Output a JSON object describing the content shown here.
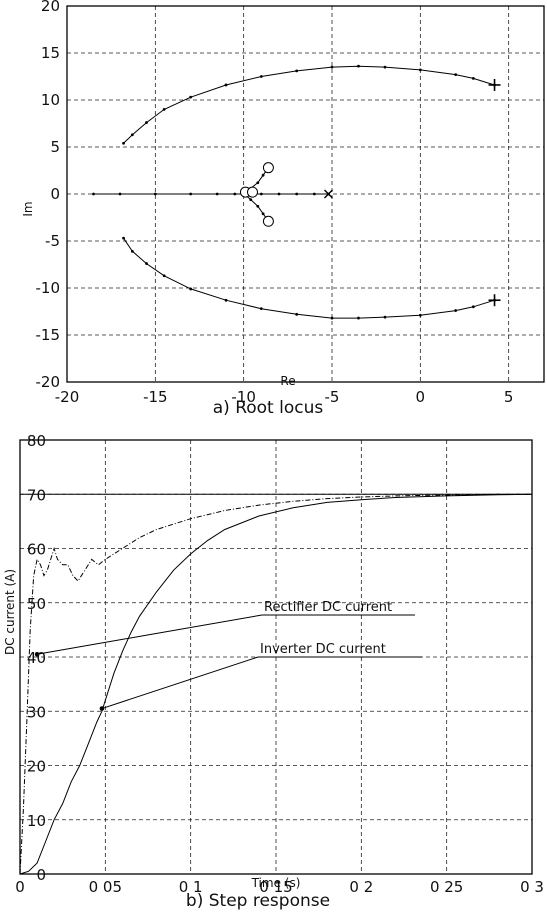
{
  "chart_data": [
    {
      "type": "scatter",
      "caption": "a) Root locus",
      "xlabel": "Re",
      "ylabel": "Im",
      "xlim": [
        -20,
        7
      ],
      "ylim": [
        -20,
        20
      ],
      "xticks": [
        -20,
        -15,
        -10,
        -5,
        0,
        5
      ],
      "yticks": [
        20,
        15,
        10,
        5,
        0,
        -5,
        -10,
        -15,
        -20
      ],
      "grid": true,
      "series": [
        {
          "points": [
            [
              4.2,
              11.6
            ],
            [
              3.0,
              12.3
            ],
            [
              2.0,
              12.7
            ],
            [
              0.0,
              13.2
            ],
            [
              -2.0,
              13.5
            ],
            [
              -3.5,
              13.6
            ],
            [
              -5.0,
              13.5
            ],
            [
              -7.0,
              13.1
            ],
            [
              -9.0,
              12.5
            ],
            [
              -11.0,
              11.6
            ],
            [
              -13.0,
              10.3
            ],
            [
              -14.5,
              9.0
            ],
            [
              -15.5,
              7.6
            ],
            [
              -16.3,
              6.3
            ],
            [
              -16.8,
              5.4
            ]
          ]
        },
        {
          "points": [
            [
              4.2,
              -11.3
            ],
            [
              3.0,
              -12.0
            ],
            [
              2.0,
              -12.4
            ],
            [
              0.0,
              -12.9
            ],
            [
              -2.0,
              -13.1
            ],
            [
              -3.5,
              -13.2
            ],
            [
              -5.0,
              -13.2
            ],
            [
              -7.0,
              -12.8
            ],
            [
              -9.0,
              -12.2
            ],
            [
              -11.0,
              -11.3
            ],
            [
              -13.0,
              -10.1
            ],
            [
              -14.5,
              -8.7
            ],
            [
              -15.5,
              -7.4
            ],
            [
              -16.3,
              -6.1
            ],
            [
              -16.8,
              -4.7
            ]
          ]
        },
        {
          "points": [
            [
              -5.2,
              0
            ],
            [
              -6.0,
              0
            ],
            [
              -7.0,
              0
            ],
            [
              -8.0,
              0
            ],
            [
              -9.0,
              0
            ],
            [
              -9.6,
              0
            ],
            [
              -9.9,
              0
            ],
            [
              -10.5,
              0
            ],
            [
              -11.5,
              0
            ],
            [
              -13.0,
              0
            ],
            [
              -15.0,
              0
            ],
            [
              -17.0,
              0
            ],
            [
              -18.5,
              0
            ]
          ]
        },
        {
          "points": [
            [
              -9.9,
              0.1
            ],
            [
              -9.6,
              0.6
            ],
            [
              -9.2,
              1.2
            ],
            [
              -8.9,
              2.0
            ],
            [
              -8.6,
              2.8
            ]
          ]
        },
        {
          "points": [
            [
              -9.9,
              -0.1
            ],
            [
              -9.6,
              -0.6
            ],
            [
              -9.2,
              -1.3
            ],
            [
              -8.9,
              -2.1
            ],
            [
              -8.6,
              -2.9
            ]
          ]
        }
      ],
      "poles": [
        [
          4.2,
          11.6
        ],
        [
          4.2,
          -11.3
        ],
        [
          -5.2,
          0
        ]
      ],
      "zeros": [
        [
          -8.6,
          2.8
        ],
        [
          -8.6,
          -2.9
        ],
        [
          -9.9,
          0.2
        ],
        [
          -9.5,
          0.2
        ]
      ]
    },
    {
      "type": "line",
      "caption": "b) Step response",
      "xlabel": "Time (s)",
      "ylabel": "DC current (A)",
      "xlim": [
        0,
        0.3
      ],
      "ylim": [
        0,
        80
      ],
      "xtick_labels": [
        "0",
        "0 05",
        "0 1",
        "0 15",
        "0 2",
        "0 25",
        "0 3"
      ],
      "xtick_values": [
        0,
        0.05,
        0.1,
        0.15,
        0.2,
        0.25,
        0.3
      ],
      "yticks": [
        80,
        70,
        60,
        50,
        40,
        30,
        20,
        10,
        0
      ],
      "grid": true,
      "reference_level": 70,
      "annotations": [
        {
          "text": "Rectifier DC current",
          "point": [
            0.01,
            40.5
          ]
        },
        {
          "text": "Inverter DC current",
          "point": [
            0.048,
            30.5
          ]
        }
      ],
      "series": [
        {
          "name": "Rectifier DC current",
          "style": "dash-dot",
          "x": [
            0,
            0.002,
            0.004,
            0.006,
            0.008,
            0.01,
            0.012,
            0.014,
            0.016,
            0.018,
            0.02,
            0.022,
            0.025,
            0.028,
            0.031,
            0.034,
            0.038,
            0.042,
            0.046,
            0.05,
            0.055,
            0.06,
            0.065,
            0.07,
            0.08,
            0.09,
            0.1,
            0.12,
            0.14,
            0.16,
            0.18,
            0.2,
            0.22,
            0.24,
            0.26,
            0.28,
            0.3
          ],
          "y": [
            0,
            12,
            28,
            45,
            55,
            58,
            57,
            55,
            56,
            58,
            60,
            58,
            57,
            57,
            55,
            54,
            56,
            58,
            57,
            58,
            59,
            60,
            61,
            62,
            63.5,
            64.5,
            65.5,
            67,
            68,
            68.7,
            69.2,
            69.5,
            69.7,
            69.8,
            69.9,
            70,
            70
          ]
        },
        {
          "name": "Inverter DC current",
          "style": "solid",
          "x": [
            0,
            0.005,
            0.01,
            0.015,
            0.02,
            0.025,
            0.03,
            0.035,
            0.04,
            0.045,
            0.048,
            0.05,
            0.055,
            0.06,
            0.065,
            0.07,
            0.08,
            0.09,
            0.1,
            0.11,
            0.12,
            0.14,
            0.16,
            0.18,
            0.2,
            0.22,
            0.25,
            0.28,
            0.3
          ],
          "y": [
            0,
            0.5,
            2,
            6,
            10,
            13,
            17,
            20,
            24,
            28,
            30,
            32,
            37,
            41,
            44.5,
            47.5,
            52,
            56,
            59,
            61.5,
            63.5,
            66,
            67.5,
            68.5,
            69,
            69.4,
            69.7,
            69.9,
            70
          ]
        }
      ]
    }
  ]
}
